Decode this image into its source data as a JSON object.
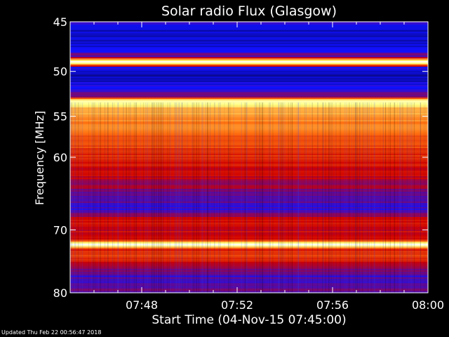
{
  "chart_data": {
    "type": "heatmap",
    "title": "Solar radio Flux (Glasgow)",
    "xlabel": "Start Time (04-Nov-15 07:45:00)",
    "ylabel": "Frequency [MHz]",
    "x_start": "07:45:00",
    "x_end": "08:00:00",
    "x_range_minutes": [
      0,
      15
    ],
    "y_scale": "log",
    "ylim": [
      45,
      80
    ],
    "y_direction": "increasing-downward",
    "x_ticks": [
      {
        "minute": 3,
        "label": "07:48"
      },
      {
        "minute": 7,
        "label": "07:52"
      },
      {
        "minute": 11,
        "label": "07:56"
      },
      {
        "minute": 15,
        "label": "08:00"
      }
    ],
    "y_ticks": [
      {
        "value": 45,
        "label": "45"
      },
      {
        "value": 50,
        "label": "50"
      },
      {
        "value": 55,
        "label": "55"
      },
      {
        "value": 60,
        "label": "60"
      },
      {
        "value": 70,
        "label": "70"
      },
      {
        "value": 80,
        "label": "80"
      }
    ],
    "colormap": [
      "#000000",
      "#1010ff",
      "#d00000",
      "#ff7010",
      "#ffff80",
      "#ffffff"
    ],
    "frequency_profile": [
      {
        "mhz": 45.0,
        "level": 0.25
      },
      {
        "mhz": 46.0,
        "level": 0.15
      },
      {
        "mhz": 47.5,
        "level": 0.18
      },
      {
        "mhz": 48.5,
        "level": 0.3
      },
      {
        "mhz": 49.0,
        "level": 1.0
      },
      {
        "mhz": 49.6,
        "level": 0.2
      },
      {
        "mhz": 50.5,
        "level": 0.14
      },
      {
        "mhz": 52.0,
        "level": 0.22
      },
      {
        "mhz": 52.8,
        "level": 0.35
      },
      {
        "mhz": 53.2,
        "level": 0.92
      },
      {
        "mhz": 54.0,
        "level": 0.7
      },
      {
        "mhz": 56.0,
        "level": 0.62
      },
      {
        "mhz": 58.0,
        "level": 0.55
      },
      {
        "mhz": 60.0,
        "level": 0.46
      },
      {
        "mhz": 61.5,
        "level": 0.42
      },
      {
        "mhz": 63.0,
        "level": 0.38
      },
      {
        "mhz": 65.0,
        "level": 0.3
      },
      {
        "mhz": 67.0,
        "level": 0.25
      },
      {
        "mhz": 68.5,
        "level": 0.42
      },
      {
        "mhz": 70.0,
        "level": 0.4
      },
      {
        "mhz": 71.5,
        "level": 0.45
      },
      {
        "mhz": 72.2,
        "level": 0.98
      },
      {
        "mhz": 73.0,
        "level": 0.45
      },
      {
        "mhz": 74.0,
        "level": 0.5
      },
      {
        "mhz": 76.0,
        "level": 0.3
      },
      {
        "mhz": 78.0,
        "level": 0.24
      },
      {
        "mhz": 80.0,
        "level": 0.3
      }
    ]
  },
  "footer": {
    "updated": "Updated Thu Feb 22 00:56:47 2018"
  }
}
